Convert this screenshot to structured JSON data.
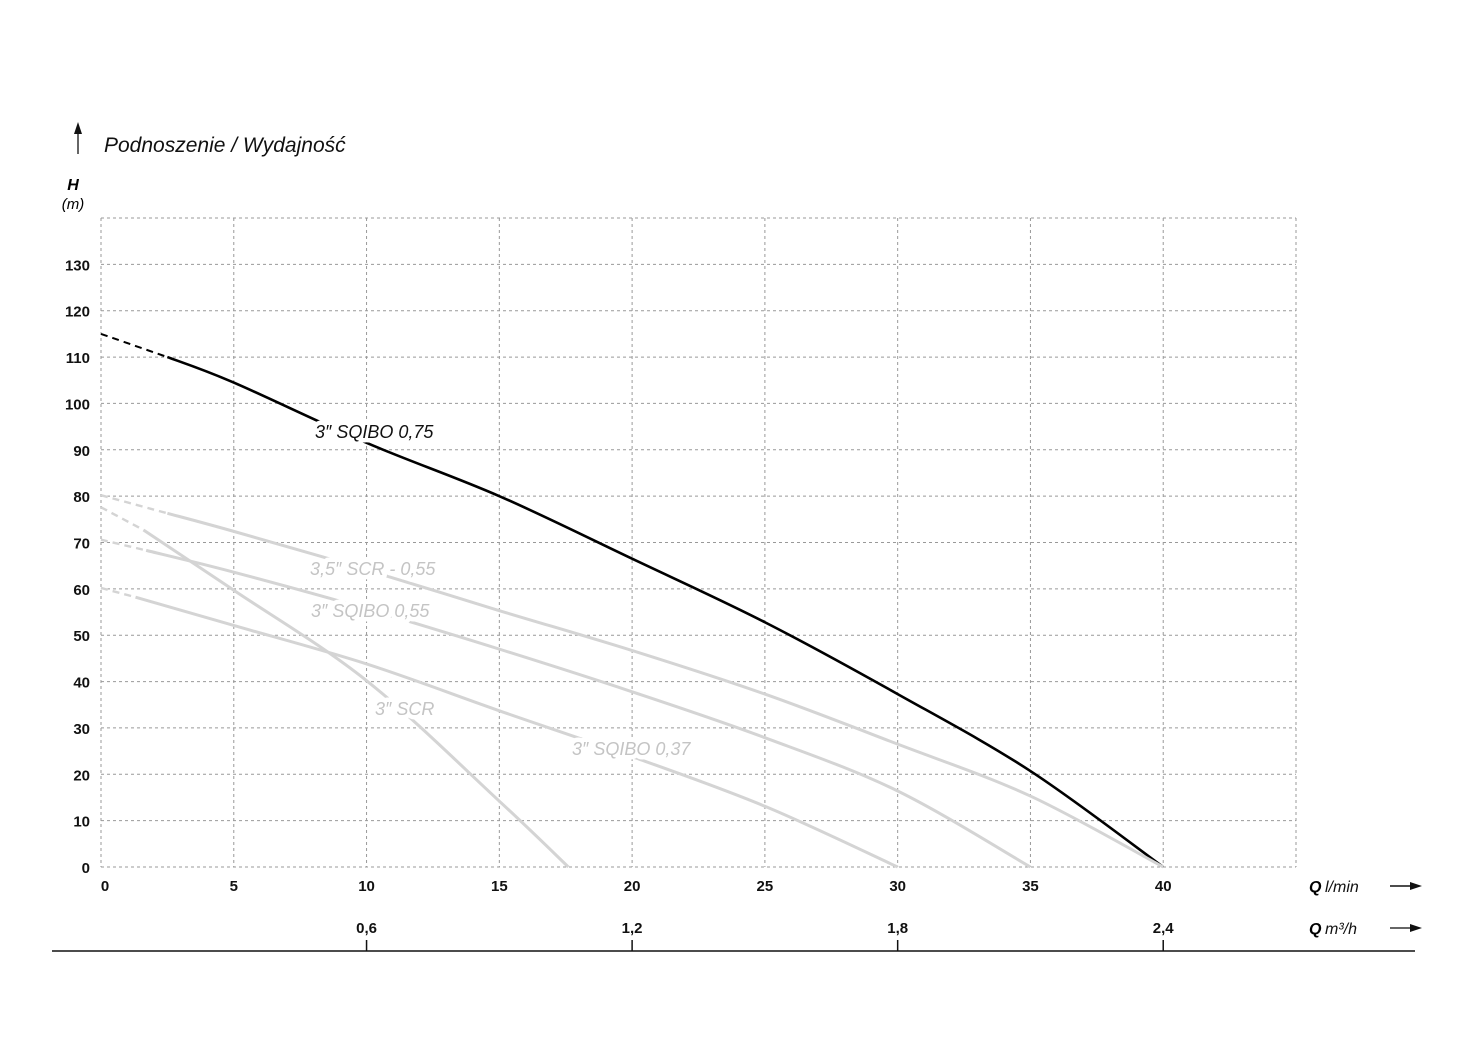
{
  "chart_data": {
    "type": "line",
    "title": "Podnoszenie / Wydajność",
    "ylabel": "H",
    "yunit": "(m)",
    "xlabel": "Q",
    "xunit": "l/min",
    "x2label": "Q",
    "x2unit": "m³/h",
    "xlim": [
      0,
      45
    ],
    "ylim": [
      0,
      140
    ],
    "grid": true,
    "grid_style": "dashed",
    "x_ticks": [
      0,
      5,
      10,
      15,
      20,
      25,
      30,
      35,
      40
    ],
    "x_tick_labels": [
      "0",
      "5",
      "10",
      "15",
      "20",
      "25",
      "30",
      "35",
      "40"
    ],
    "y_ticks": [
      0,
      10,
      20,
      30,
      40,
      50,
      60,
      70,
      80,
      90,
      100,
      110,
      120,
      130
    ],
    "y_tick_labels": [
      "0",
      "10",
      "20",
      "30",
      "40",
      "50",
      "60",
      "70",
      "80",
      "90",
      "100",
      "110",
      "120",
      "130"
    ],
    "x2_ticks": [
      10,
      20,
      30,
      40
    ],
    "x2_tick_labels": [
      "0,6",
      "1,2",
      "1,8",
      "2,4"
    ],
    "series": [
      {
        "name": "3″ SQIBO 0,75",
        "color": "#000000",
        "dashed_until": 2.5,
        "points": [
          [
            0,
            115
          ],
          [
            2.5,
            110
          ],
          [
            5,
            104.5
          ],
          [
            10,
            91.5
          ],
          [
            15,
            80
          ],
          [
            20,
            66.5
          ],
          [
            25,
            52.8
          ],
          [
            30,
            37.3
          ],
          [
            35,
            20.7
          ],
          [
            40,
            0
          ]
        ]
      },
      {
        "name": "3,5″ SCR - 0,55",
        "color": "#d4d4d4",
        "dashed_until": 2.5,
        "points": [
          [
            0,
            80.2
          ],
          [
            2.5,
            76.3
          ],
          [
            5,
            72.4
          ],
          [
            10,
            64.1
          ],
          [
            15,
            55.3
          ],
          [
            20,
            46.7
          ],
          [
            25,
            37.3
          ],
          [
            30,
            26.5
          ],
          [
            35,
            15.3
          ],
          [
            40,
            0
          ]
        ]
      },
      {
        "name": "3″ SQIBO 0,55",
        "color": "#d4d4d4",
        "dashed_until": 1.7,
        "points": [
          [
            0,
            70.6
          ],
          [
            1.7,
            68.3
          ],
          [
            5,
            63.6
          ],
          [
            10,
            55.7
          ],
          [
            15,
            47
          ],
          [
            20,
            37.8
          ],
          [
            25,
            27.9
          ],
          [
            30,
            16.4
          ],
          [
            35,
            0
          ]
        ]
      },
      {
        "name": "3″ SQIBO 0,37",
        "color": "#d4d4d4",
        "dashed_until": 1.3,
        "points": [
          [
            0,
            60.2
          ],
          [
            1.3,
            58.2
          ],
          [
            5,
            52.1
          ],
          [
            10,
            43.8
          ],
          [
            15,
            33.7
          ],
          [
            20,
            23.8
          ],
          [
            25,
            13.1
          ],
          [
            30,
            0
          ]
        ]
      },
      {
        "name": "3″ SCR",
        "color": "#d4d4d4",
        "dashed_until": 1.6,
        "points": [
          [
            0,
            77.6
          ],
          [
            1.6,
            72.7
          ],
          [
            5,
            59.7
          ],
          [
            10,
            40.2
          ],
          [
            15,
            14.2
          ],
          [
            17.6,
            0
          ]
        ]
      }
    ],
    "label_color_gray": "#c4c4c4"
  }
}
